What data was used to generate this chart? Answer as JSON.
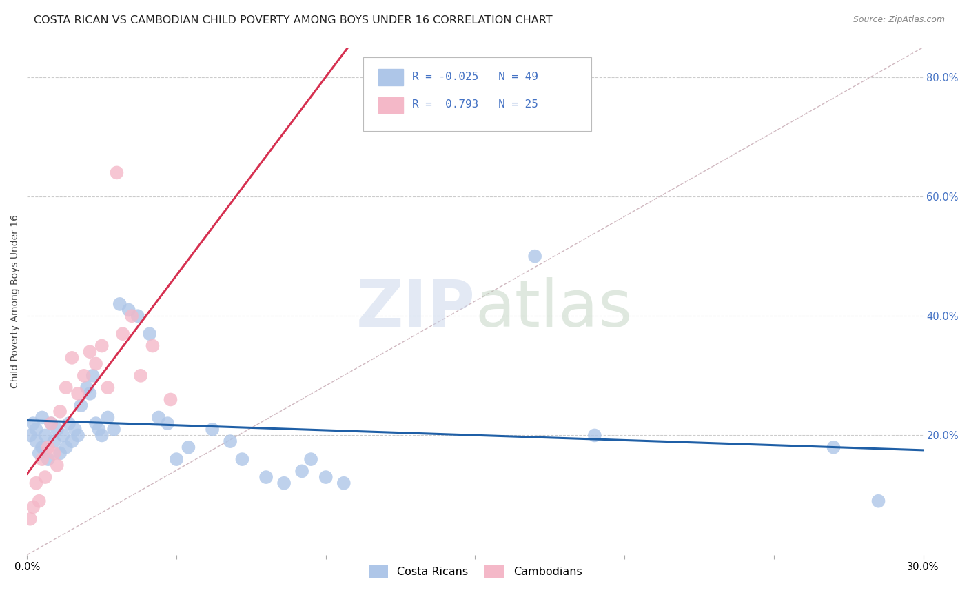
{
  "title": "COSTA RICAN VS CAMBODIAN CHILD POVERTY AMONG BOYS UNDER 16 CORRELATION CHART",
  "source": "Source: ZipAtlas.com",
  "ylabel": "Child Poverty Among Boys Under 16",
  "xlim": [
    0.0,
    0.3
  ],
  "ylim": [
    0.0,
    0.85
  ],
  "xticks": [
    0.0,
    0.05,
    0.1,
    0.15,
    0.2,
    0.25,
    0.3
  ],
  "xticklabels": [
    "0.0%",
    "",
    "",
    "",
    "",
    "",
    "30.0%"
  ],
  "yticks": [
    0.0,
    0.2,
    0.4,
    0.6,
    0.8
  ],
  "yticklabels": [
    "",
    "20.0%",
    "40.0%",
    "60.0%",
    "80.0%"
  ],
  "costa_ricans": {
    "R": -0.025,
    "N": 49,
    "dot_color": "#aec6e8",
    "line_color": "#1f5fa6",
    "x": [
      0.001,
      0.002,
      0.003,
      0.003,
      0.004,
      0.005,
      0.005,
      0.006,
      0.007,
      0.008,
      0.009,
      0.01,
      0.011,
      0.012,
      0.013,
      0.014,
      0.015,
      0.016,
      0.017,
      0.018,
      0.02,
      0.021,
      0.022,
      0.023,
      0.024,
      0.025,
      0.027,
      0.029,
      0.031,
      0.034,
      0.037,
      0.041,
      0.044,
      0.047,
      0.05,
      0.054,
      0.062,
      0.068,
      0.072,
      0.08,
      0.086,
      0.092,
      0.095,
      0.1,
      0.106,
      0.17,
      0.19,
      0.27,
      0.285
    ],
    "y": [
      0.2,
      0.22,
      0.19,
      0.21,
      0.17,
      0.23,
      0.18,
      0.2,
      0.16,
      0.22,
      0.19,
      0.21,
      0.17,
      0.2,
      0.18,
      0.22,
      0.19,
      0.21,
      0.2,
      0.25,
      0.28,
      0.27,
      0.3,
      0.22,
      0.21,
      0.2,
      0.23,
      0.21,
      0.42,
      0.41,
      0.4,
      0.37,
      0.23,
      0.22,
      0.16,
      0.18,
      0.21,
      0.19,
      0.16,
      0.13,
      0.12,
      0.14,
      0.16,
      0.13,
      0.12,
      0.5,
      0.2,
      0.18,
      0.09
    ]
  },
  "cambodians": {
    "R": 0.793,
    "N": 25,
    "dot_color": "#f4b8c8",
    "line_color": "#d63050",
    "x": [
      0.001,
      0.002,
      0.003,
      0.004,
      0.005,
      0.006,
      0.007,
      0.008,
      0.009,
      0.01,
      0.011,
      0.013,
      0.015,
      0.017,
      0.019,
      0.021,
      0.023,
      0.025,
      0.027,
      0.03,
      0.032,
      0.035,
      0.038,
      0.042,
      0.048
    ],
    "y": [
      0.06,
      0.08,
      0.12,
      0.09,
      0.16,
      0.13,
      0.18,
      0.22,
      0.17,
      0.15,
      0.24,
      0.28,
      0.33,
      0.27,
      0.3,
      0.34,
      0.32,
      0.35,
      0.28,
      0.64,
      0.37,
      0.4,
      0.3,
      0.35,
      0.26
    ]
  },
  "diag_line_color": "#d0b8c0",
  "watermark_zip": "ZIP",
  "watermark_atlas": "atlas",
  "watermark_color_zip": "#c8d8ec",
  "watermark_color_atlas": "#c8d8c8",
  "background_color": "#ffffff",
  "grid_color": "#cccccc",
  "title_fontsize": 11.5,
  "axis_label_fontsize": 10,
  "tick_fontsize": 10.5,
  "right_tick_color": "#4472c4",
  "legend_R_color": "#4472c4"
}
